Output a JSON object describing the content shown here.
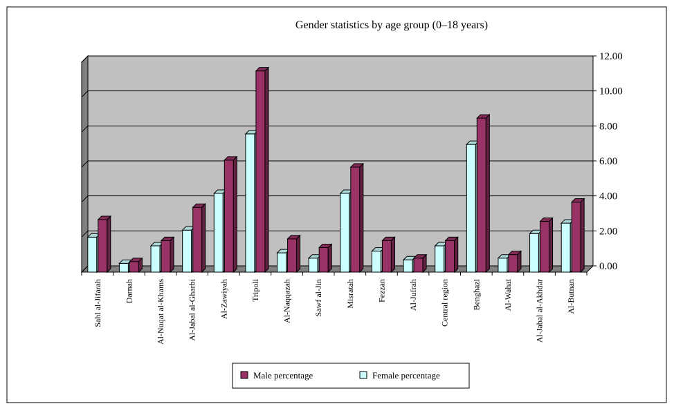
{
  "chart_data": {
    "type": "bar",
    "title": "Gender statistics by age group (0–18 years)",
    "xlabel": "",
    "ylabel": "",
    "ylim": [
      0,
      12
    ],
    "yticks": [
      "0.00",
      "2.00",
      "4.00",
      "6.00",
      "8.00",
      "10.00",
      "12.00"
    ],
    "grid": true,
    "legend_position": "bottom",
    "categories": [
      "Sahl al-Jifarah",
      "Darnah",
      "Al-Nuqat al-Khams",
      "Al-Jabal al-Gharbi",
      "Al-Zawiyah",
      "Tripoli",
      "Al-Naqqazah",
      "Sawf al-Jin",
      "Misratah",
      "Fezzan",
      "Al-Jufrah",
      "Central region",
      "Benghazi",
      "Al-Wahat",
      "Al-Jabal al-Akhdar",
      "Al-Butnan"
    ],
    "series": [
      {
        "name": "Female percentage",
        "color": "#ccffff",
        "values": [
          2.0,
          0.5,
          1.5,
          2.4,
          4.5,
          7.9,
          1.1,
          0.8,
          4.5,
          1.2,
          0.7,
          1.5,
          7.3,
          0.8,
          2.2,
          2.8
        ]
      },
      {
        "name": "Male percentage",
        "color": "#993366",
        "values": [
          3.0,
          0.6,
          1.8,
          3.7,
          6.4,
          11.5,
          1.9,
          1.4,
          6.0,
          1.8,
          0.8,
          1.8,
          8.8,
          1.0,
          2.9,
          4.0
        ]
      }
    ],
    "legend_order": [
      "Male percentage",
      "Female percentage"
    ]
  }
}
